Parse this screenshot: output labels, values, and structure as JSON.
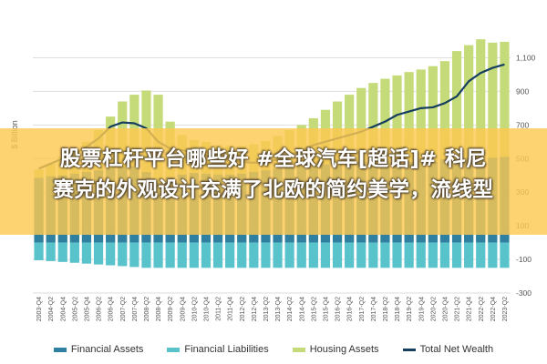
{
  "overlay": {
    "line1": "股票杠杆平台哪些好 #全球汽车[超话]# 科尼",
    "line2": "赛克的外观设计充满了北欧的简约美学，流线型"
  },
  "colors": {
    "financial_assets": "#2e7fa0",
    "financial_liabilities": "#59c3cc",
    "housing_assets": "#c5db7a",
    "total_net_wealth": "#163e5e",
    "overlay": "#fcc850"
  },
  "chart_data": {
    "type": "area",
    "ylabel": "$ Billion",
    "ylim": [
      -300,
      1200
    ],
    "yticks": [
      -300,
      -100,
      100,
      300,
      500,
      700,
      900,
      1100
    ],
    "ytick_labels": [
      "-300",
      "-100",
      "100",
      "300",
      "500",
      "700",
      "900",
      "1,100"
    ],
    "grid": true,
    "legend_position": "bottom",
    "x": [
      "2003-Q4",
      "2004-Q2",
      "2004-Q4",
      "2005-Q2",
      "2005-Q4",
      "2006-Q2",
      "2006-Q4",
      "2007-Q2",
      "2007-Q4",
      "2008-Q2",
      "2008-Q4",
      "2009-Q2",
      "2009-Q4",
      "2010-Q2",
      "2010-Q4",
      "2011-Q2",
      "2011-Q4",
      "2012-Q2",
      "2012-Q4",
      "2013-Q2",
      "2013-Q4",
      "2014-Q2",
      "2014-Q4",
      "2015-Q2",
      "2015-Q4",
      "2016-Q2",
      "2016-Q4",
      "2017-Q2",
      "2017-Q4",
      "2018-Q2",
      "2018-Q4",
      "2019-Q2",
      "2019-Q4",
      "2020-Q2",
      "2020-Q4",
      "2021-Q2",
      "2021-Q4",
      "2022-Q2",
      "2022-Q4",
      "2023-Q2"
    ],
    "series": [
      {
        "name": "Housing Assets",
        "values": [
          435,
          470,
          510,
          550,
          600,
          670,
          750,
          840,
          880,
          905,
          880,
          720,
          640,
          610,
          600,
          580,
          575,
          575,
          585,
          605,
          635,
          670,
          700,
          740,
          790,
          840,
          880,
          920,
          950,
          975,
          995,
          1015,
          1030,
          1050,
          1080,
          1140,
          1175,
          1210,
          1190,
          1195
        ]
      },
      {
        "name": "Financial Assets",
        "values": [
          385,
          395,
          400,
          410,
          420,
          430,
          440,
          450,
          455,
          420,
          380,
          390,
          405,
          415,
          410,
          405,
          405,
          410,
          420,
          430,
          440,
          450,
          455,
          460,
          465,
          470,
          475,
          480,
          480,
          485,
          475,
          480,
          485,
          480,
          495,
          500,
          505,
          510,
          505,
          510
        ]
      },
      {
        "name": "Financial Liabilities",
        "values": [
          -105,
          -110,
          -115,
          -120,
          -125,
          -130,
          -135,
          -140,
          -145,
          -150,
          -150,
          -150,
          -150,
          -150,
          -150,
          -150,
          -150,
          -150,
          -150,
          -150,
          -150,
          -150,
          -150,
          -150,
          -150,
          -150,
          -150,
          -150,
          -150,
          -150,
          -150,
          -150,
          -150,
          -150,
          -150,
          -150,
          -150,
          -150,
          -150,
          -150
        ]
      },
      {
        "name": "Total Net Wealth",
        "values": [
          440,
          470,
          500,
          530,
          570,
          620,
          690,
          715,
          710,
          680,
          600,
          560,
          550,
          535,
          520,
          505,
          490,
          480,
          475,
          480,
          495,
          520,
          550,
          580,
          600,
          620,
          640,
          660,
          690,
          720,
          760,
          780,
          800,
          805,
          830,
          870,
          960,
          1010,
          1040,
          1060
        ]
      }
    ]
  }
}
